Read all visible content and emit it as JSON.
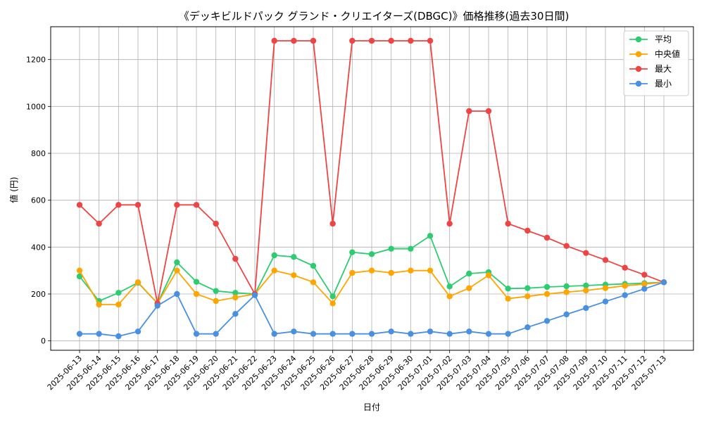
{
  "chart_data": {
    "type": "line",
    "title": "《デッキビルドパック グランド・クリエイターズ(DBGC)》価格推移(過去30日間)",
    "xlabel": "日付",
    "ylabel": "値 (円)",
    "ylim": [
      -40,
      1340
    ],
    "yticks": [
      0,
      200,
      400,
      600,
      800,
      1000,
      1200
    ],
    "ytick_labels": [
      "0",
      "200",
      "400",
      "600",
      "800",
      "1000",
      "1200"
    ],
    "grid": true,
    "legend_position": "top-right",
    "categories": [
      "2025-06-13",
      "2025-06-14",
      "2025-06-15",
      "2025-06-16",
      "2025-06-17",
      "2025-06-18",
      "2025-06-19",
      "2025-06-20",
      "2025-06-21",
      "2025-06-22",
      "2025-06-23",
      "2025-06-24",
      "2025-06-25",
      "2025-06-26",
      "2025-06-27",
      "2025-06-28",
      "2025-06-29",
      "2025-06-30",
      "2025-07-01",
      "2025-07-02",
      "2025-07-03",
      "2025-07-04",
      "2025-07-05",
      "2025-07-06",
      "2025-07-07",
      "2025-07-08",
      "2025-07-09",
      "2025-07-10",
      "2025-07-11",
      "2025-07-12",
      "2025-07-13"
    ],
    "series": [
      {
        "name": "平均",
        "color": "#2ecc71",
        "values": [
          275,
          170,
          205,
          248,
          160,
          335,
          252,
          213,
          205,
          200,
          365,
          358,
          320,
          190,
          378,
          370,
          393,
          393,
          448,
          232,
          287,
          293,
          223,
          225,
          230,
          233,
          236,
          240,
          243,
          246,
          250
        ]
      },
      {
        "name": "中央値",
        "color": "#ffa500",
        "values": [
          300,
          155,
          155,
          250,
          160,
          300,
          200,
          170,
          185,
          200,
          300,
          280,
          250,
          160,
          290,
          300,
          290,
          300,
          300,
          190,
          225,
          280,
          180,
          190,
          200,
          208,
          215,
          225,
          235,
          242,
          250
        ]
      },
      {
        "name": "最大",
        "color": "#ef4444",
        "values": [
          580,
          500,
          580,
          580,
          160,
          580,
          580,
          500,
          350,
          200,
          1280,
          1280,
          1280,
          500,
          1280,
          1280,
          1280,
          1280,
          1280,
          500,
          980,
          980,
          500,
          470,
          440,
          405,
          375,
          345,
          312,
          282,
          250
        ]
      },
      {
        "name": "最小",
        "color": "#4a90e2",
        "values": [
          30,
          30,
          20,
          40,
          150,
          200,
          30,
          30,
          115,
          195,
          30,
          40,
          30,
          30,
          30,
          30,
          40,
          30,
          40,
          30,
          40,
          30,
          30,
          58,
          85,
          113,
          140,
          168,
          195,
          222,
          250
        ]
      }
    ]
  }
}
